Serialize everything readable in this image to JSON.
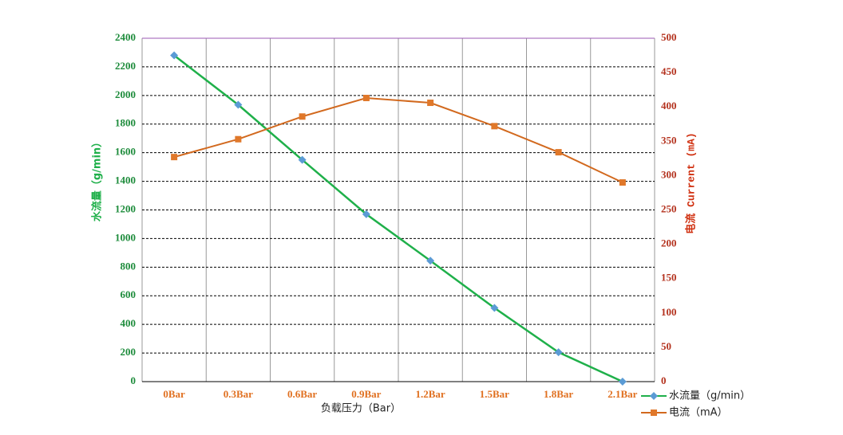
{
  "chart_data": {
    "type": "line",
    "x_label": "负载压力（Bar）",
    "y_label": "水流量（g/min）",
    "y2_label": "电流 Current (mA)",
    "categories": [
      "0Bar",
      "0.3Bar",
      "0.6Bar",
      "0.9Bar",
      "1.2Bar",
      "1.5Bar",
      "1.8Bar",
      "2.1Bar"
    ],
    "series": [
      {
        "name": "水流量（g/min）",
        "color": "#1fb04a",
        "marker_color": "#5b9bd5",
        "marker": "diamond",
        "values": [
          2280,
          1935,
          1550,
          1170,
          845,
          515,
          205,
          0
        ]
      },
      {
        "name": "电流（mA）",
        "color": "#d2691e",
        "marker_color": "#e0782a",
        "marker": "square",
        "axis": "y2",
        "values": [
          327,
          353,
          386,
          413,
          406,
          372,
          334,
          290
        ]
      }
    ],
    "ylim": [
      0,
      2400
    ],
    "yticks": [
      0,
      200,
      400,
      600,
      800,
      1000,
      1200,
      1400,
      1600,
      1800,
      2000,
      2200,
      2400
    ],
    "y2lim": [
      0,
      500
    ],
    "y2ticks": [
      0,
      50,
      100,
      150,
      200,
      250,
      300,
      350,
      400,
      450,
      500
    ],
    "grid": true
  }
}
